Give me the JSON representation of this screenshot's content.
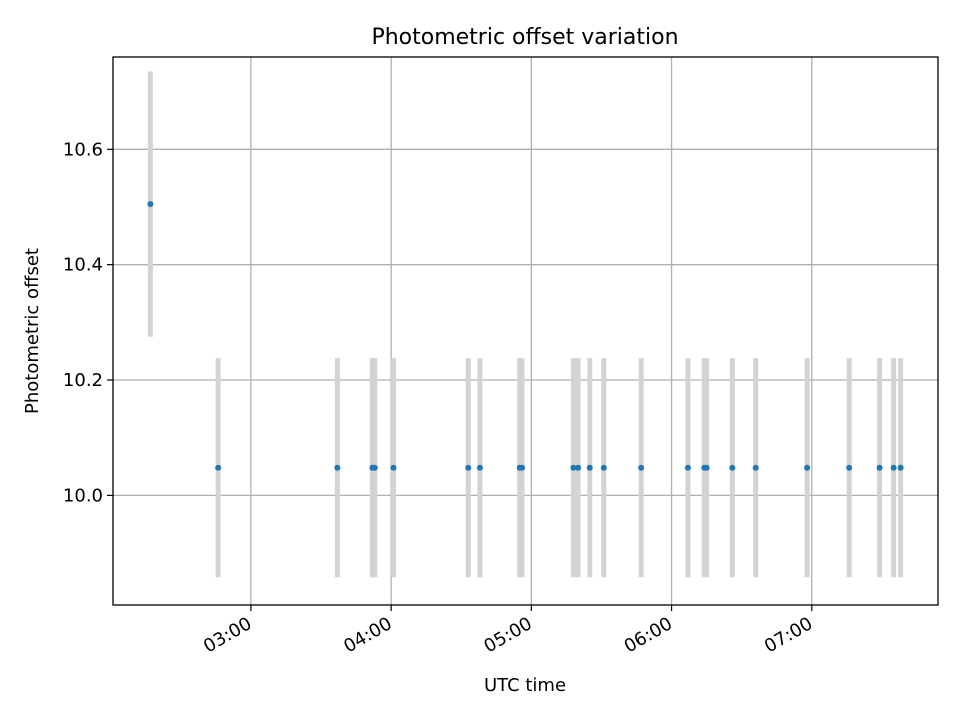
{
  "chart_data": {
    "type": "scatter",
    "title": "Photometric offset variation",
    "xlabel": "UTC time",
    "ylabel": "Photometric offset",
    "x_axis": {
      "kind": "time",
      "range": [
        "02:01",
        "07:54"
      ],
      "ticks": [
        "03:00",
        "04:00",
        "05:00",
        "06:00",
        "07:00"
      ]
    },
    "y_axis": {
      "range": [
        9.81,
        10.76
      ],
      "ticks": [
        "10.0",
        "10.2",
        "10.4",
        "10.6"
      ]
    },
    "grid": true,
    "colors": {
      "points": "#1f77b4",
      "errorbars": "#d3d3d3",
      "grid": "#b0b0b0"
    },
    "series": [
      {
        "points": [
          {
            "time": "02:17",
            "y": 10.505,
            "err": 0.23
          },
          {
            "time": "02:46",
            "y": 10.048,
            "err": 0.19
          },
          {
            "time": "03:37",
            "y": 10.048,
            "err": 0.19
          },
          {
            "time": "03:52",
            "y": 10.048,
            "err": 0.19
          },
          {
            "time": "03:53",
            "y": 10.048,
            "err": 0.19
          },
          {
            "time": "04:01",
            "y": 10.048,
            "err": 0.19
          },
          {
            "time": "04:33",
            "y": 10.048,
            "err": 0.19
          },
          {
            "time": "04:38",
            "y": 10.048,
            "err": 0.19
          },
          {
            "time": "04:55",
            "y": 10.048,
            "err": 0.19
          },
          {
            "time": "04:56",
            "y": 10.048,
            "err": 0.19
          },
          {
            "time": "05:18",
            "y": 10.048,
            "err": 0.19
          },
          {
            "time": "05:20",
            "y": 10.048,
            "err": 0.19
          },
          {
            "time": "05:25",
            "y": 10.048,
            "err": 0.19
          },
          {
            "time": "05:31",
            "y": 10.048,
            "err": 0.19
          },
          {
            "time": "05:47",
            "y": 10.048,
            "err": 0.19
          },
          {
            "time": "06:07",
            "y": 10.048,
            "err": 0.19
          },
          {
            "time": "06:14",
            "y": 10.048,
            "err": 0.19
          },
          {
            "time": "06:15",
            "y": 10.048,
            "err": 0.19
          },
          {
            "time": "06:26",
            "y": 10.048,
            "err": 0.19
          },
          {
            "time": "06:36",
            "y": 10.048,
            "err": 0.19
          },
          {
            "time": "06:58",
            "y": 10.048,
            "err": 0.19
          },
          {
            "time": "07:16",
            "y": 10.048,
            "err": 0.19
          },
          {
            "time": "07:29",
            "y": 10.048,
            "err": 0.19
          },
          {
            "time": "07:35",
            "y": 10.048,
            "err": 0.19
          },
          {
            "time": "07:38",
            "y": 10.048,
            "err": 0.19
          }
        ]
      }
    ]
  }
}
